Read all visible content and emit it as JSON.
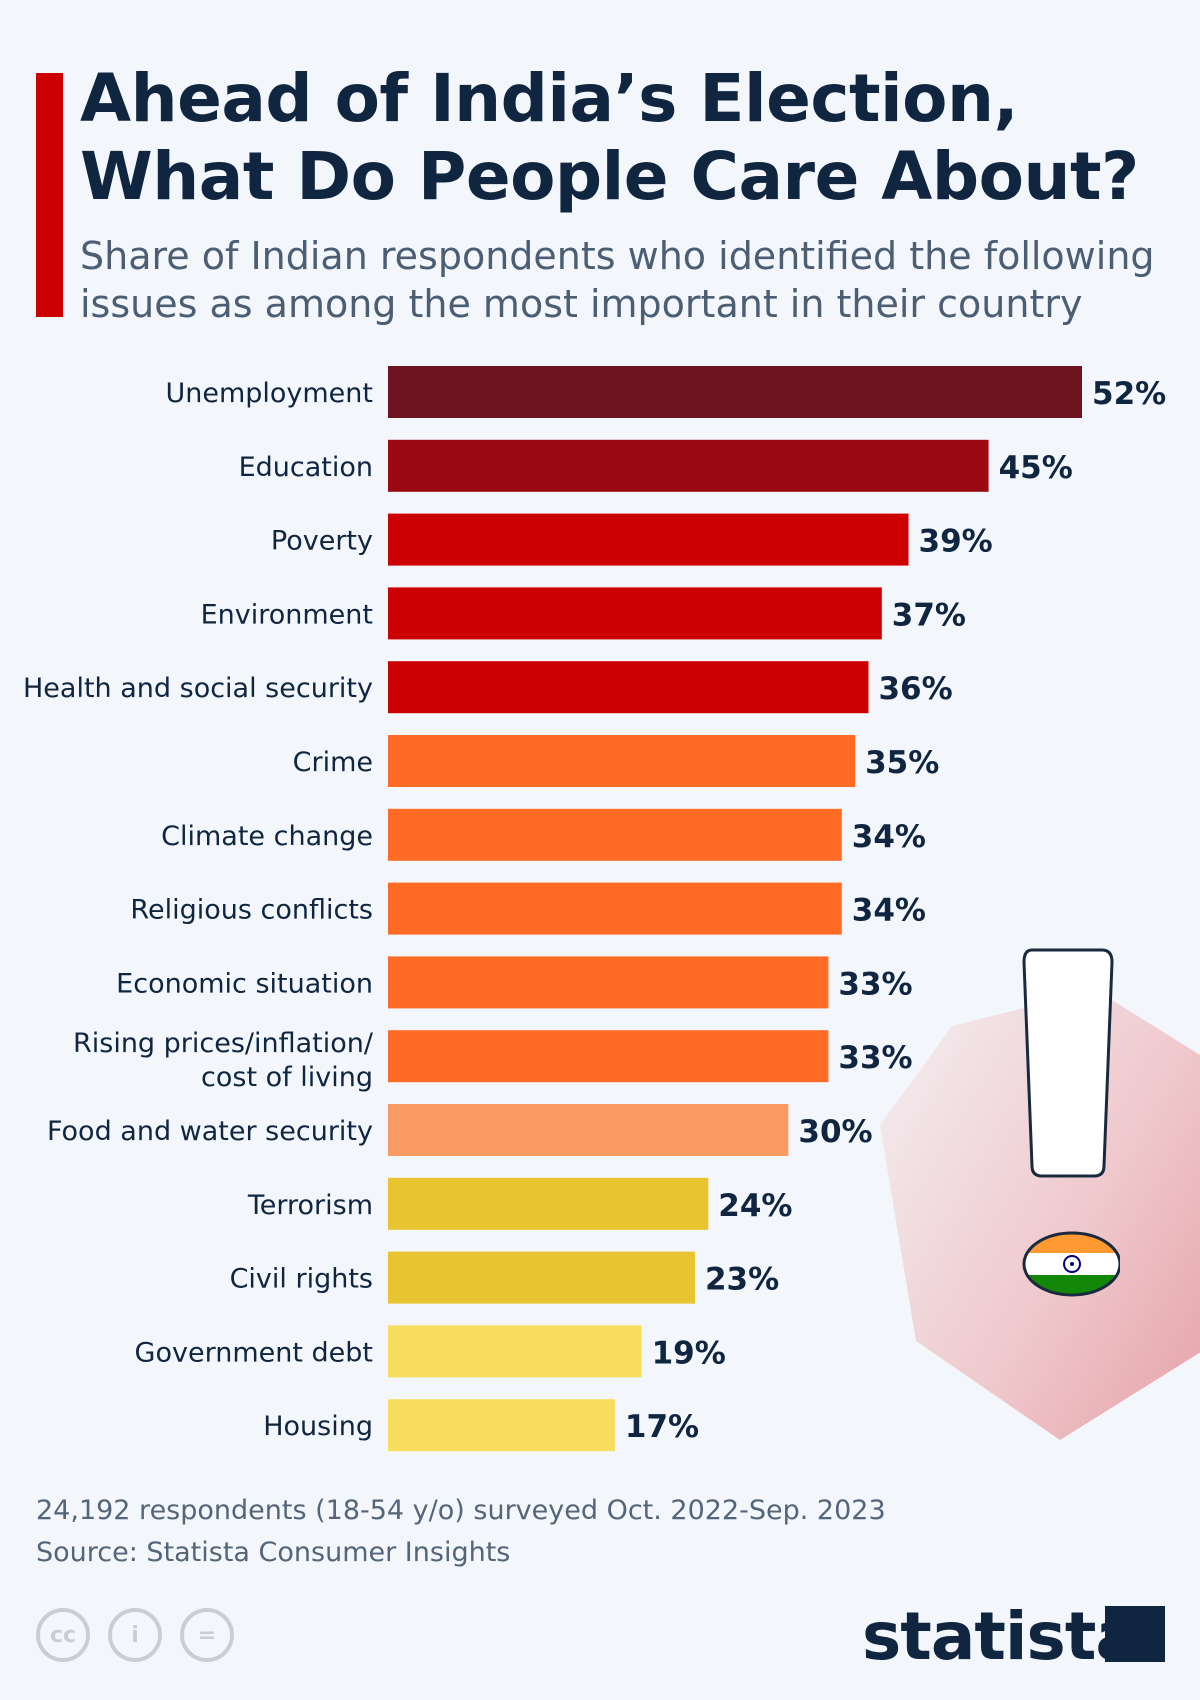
{
  "header": {
    "title_line1": "Ahead of India’s Election,",
    "title_line2": "What Do People Care About?",
    "subtitle": "Share of Indian respondents who identified the following issues as among the most important in their country"
  },
  "chart_data": {
    "type": "bar",
    "orientation": "horizontal",
    "title": "Ahead of India’s Election, What Do People Care About?",
    "categories": [
      "Unemployment",
      "Education",
      "Poverty",
      "Environment",
      "Health and social security",
      "Crime",
      "Climate change",
      "Religious conflicts",
      "Economic situation",
      "Rising prices/inflation/ cost of living",
      "Food and water security",
      "Terrorism",
      "Civil rights",
      "Government debt",
      "Housing"
    ],
    "values": [
      52,
      45,
      39,
      37,
      36,
      35,
      34,
      34,
      33,
      33,
      30,
      24,
      23,
      19,
      17
    ],
    "labels": [
      "52%",
      "45%",
      "39%",
      "37%",
      "36%",
      "35%",
      "34%",
      "34%",
      "33%",
      "33%",
      "30%",
      "24%",
      "23%",
      "19%",
      "17%"
    ],
    "colors": [
      "#6d1420",
      "#9b0a13",
      "#cc0000",
      "#cc0000",
      "#cc0000",
      "#ff6b24",
      "#ff6b24",
      "#ff6b24",
      "#ff6b24",
      "#ff6b24",
      "#f99b62",
      "#e8c430",
      "#e8c430",
      "#f8dd5c",
      "#f8dd5c"
    ],
    "unit": "%",
    "grid": false,
    "legend": "none"
  },
  "footer": {
    "note": "24,192 respondents (18-54 y/o) surveyed Oct. 2022-Sep. 2023",
    "source": "Source: Statista Consumer Insights"
  },
  "branding": {
    "logo_text": "statista"
  },
  "icons": [
    "cc-icon",
    "attribution-icon",
    "no-derivatives-icon",
    "exclamation-icon",
    "india-flag-icon",
    "statista-logo-icon"
  ]
}
